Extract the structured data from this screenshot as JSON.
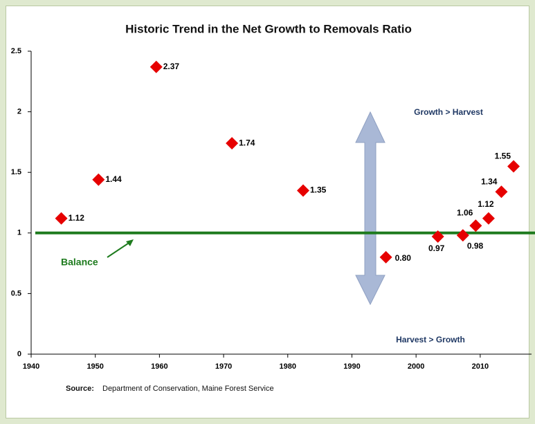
{
  "chart_data": {
    "type": "scatter",
    "title": "Historic Trend in the Net Growth to Removals Ratio",
    "x": [
      1944.7,
      1950.5,
      1959.5,
      1971.3,
      1982.4,
      1995.3,
      2003.4,
      2007.3,
      2009.3,
      2011.3,
      2013.3,
      2015.2
    ],
    "values": [
      1.12,
      1.44,
      2.37,
      1.74,
      1.35,
      0.8,
      0.97,
      0.98,
      1.06,
      1.12,
      1.34,
      1.55
    ],
    "value_labels": [
      "1.12",
      "1.44",
      "2.37",
      "1.74",
      "1.35",
      "0.80",
      "0.97",
      "0.98",
      "1.06",
      "1.12",
      "1.34",
      "1.55"
    ],
    "color": "#e60000",
    "xlim": [
      1940,
      2018
    ],
    "xticks": [
      1940,
      1950,
      1960,
      1970,
      1980,
      1990,
      2000,
      2010
    ],
    "ylim": [
      0,
      2.5
    ],
    "yticks": [
      0,
      0.5,
      1,
      1.5,
      2,
      2.5
    ],
    "balance_value": 1,
    "balance_color": "#1e7b1e",
    "annotations": {
      "balance": "Balance",
      "top": "Growth > Harvest",
      "bottom": "Harvest > Growth"
    },
    "source_label": "Source:",
    "source": "Department of Conservation, Maine Forest Service"
  }
}
